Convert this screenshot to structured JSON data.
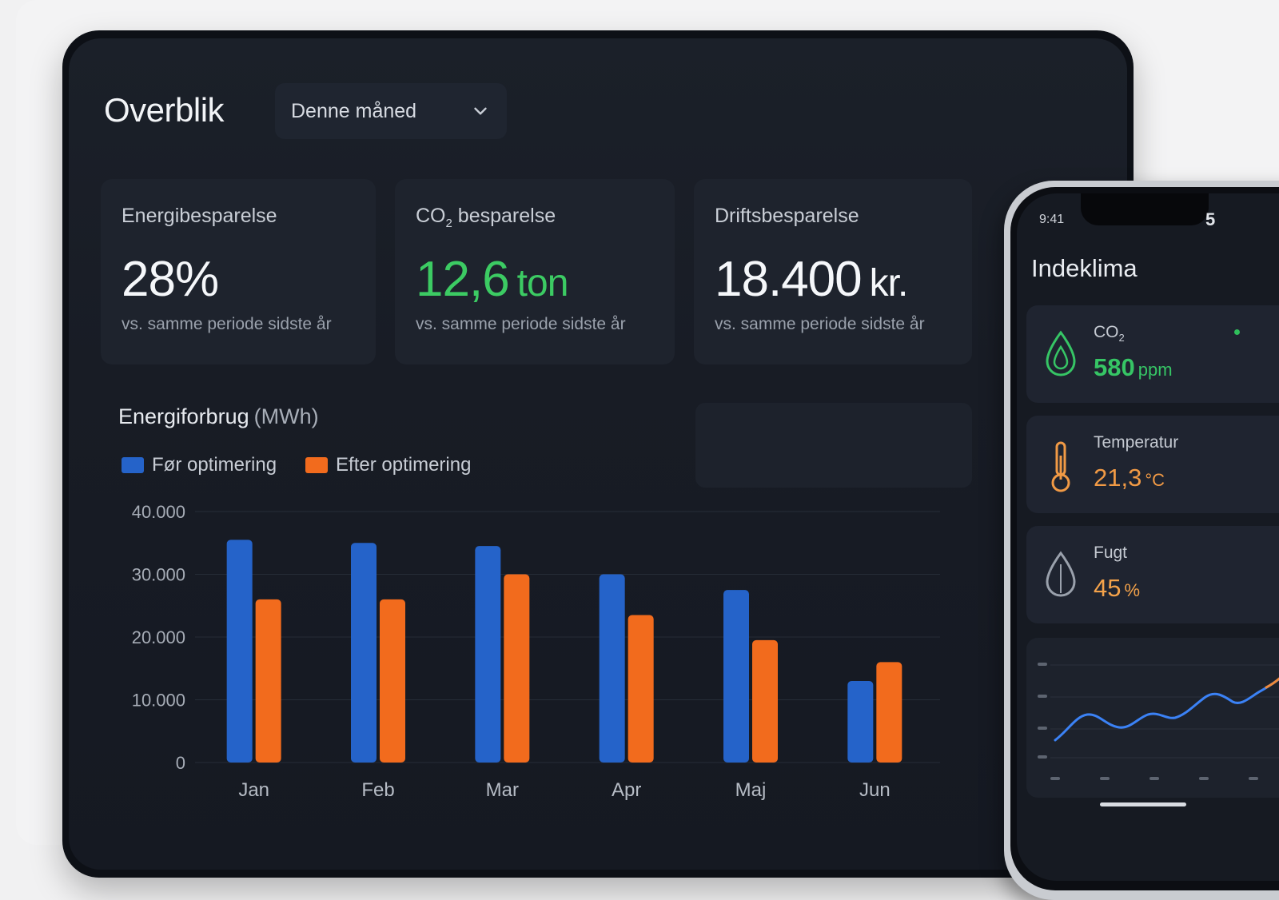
{
  "header": {
    "title": "Overblik",
    "period_select": {
      "value": "Denne måned"
    }
  },
  "kpis": [
    {
      "label": "Energibesparelse",
      "value": "28%",
      "unit": "",
      "sub": "vs. samme periode sidste år"
    },
    {
      "label_prefix": "CO",
      "label_sub": "2",
      "label_suffix": " besparelse",
      "value": "12,6",
      "unit": "ton",
      "sub": "vs. samme periode sidste år"
    },
    {
      "label": "Driftsbesparelse",
      "value": "18.400",
      "unit": "kr.",
      "sub": "vs. samme periode sidste år"
    }
  ],
  "energy_chart": {
    "title": "Energiforbrug",
    "unit": "(MWh)",
    "legend": [
      "Før optimering",
      "Efter optimering"
    ],
    "y_ticks": [
      "40.000",
      "30.000",
      "20.000",
      "10.000",
      "0"
    ]
  },
  "chart_data": {
    "type": "bar",
    "categories": [
      "Jan",
      "Feb",
      "Mar",
      "Apr",
      "Maj",
      "Jun"
    ],
    "series": [
      {
        "name": "Før optimering",
        "values": [
          35500,
          35000,
          34500,
          30000,
          27500,
          13000
        ]
      },
      {
        "name": "Efter optimering",
        "values": [
          26000,
          26000,
          30000,
          23500,
          19500,
          16000
        ]
      }
    ],
    "ylim": [
      0,
      40000
    ],
    "grid": true,
    "legend_position": "top-left",
    "colors": {
      "before": "#2563c9",
      "after": "#f26b1d"
    }
  },
  "phone": {
    "status_time": "9:41",
    "status_right": "5",
    "title": "Indeklima",
    "cards": [
      {
        "label_prefix": "CO",
        "label_sub": "2",
        "value": "580",
        "unit": "ppm",
        "color": "#36c565",
        "icon": "co2-drop-icon"
      },
      {
        "label": "Temperatur",
        "value": "21,3",
        "unit": "°C",
        "color": "#f19a45",
        "icon": "thermometer-icon"
      },
      {
        "label": "Fugt",
        "value": "45",
        "unit": "%",
        "color": "#f3a24a",
        "icon": "humidity-drop-icon"
      }
    ],
    "mini_chart": {
      "line_color": "#3b82f6",
      "accent_color": "#f08a3a"
    }
  },
  "colors": {
    "background": "#f1f1f2",
    "tablet_screen": "#1a1e27",
    "card": "#1e232d",
    "green": "#3ccb63"
  }
}
